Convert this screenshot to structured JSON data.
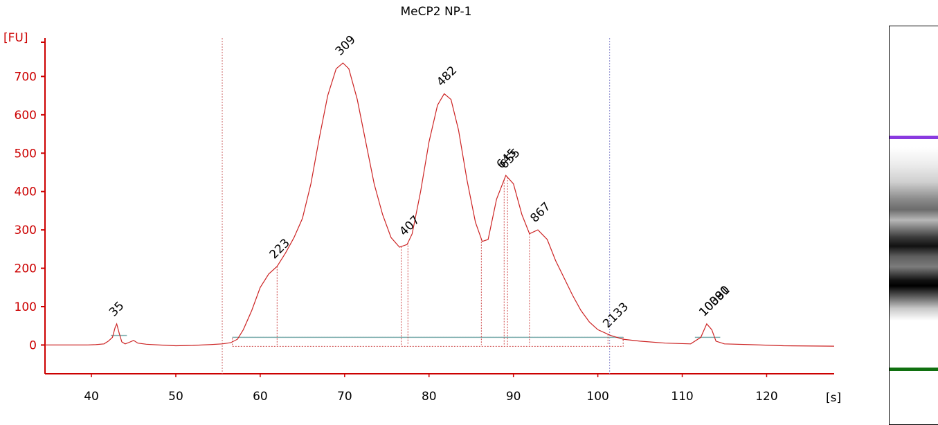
{
  "chart_data": {
    "type": "line",
    "title": "MeCP2 NP-1",
    "ylabel": "[FU]",
    "xlabel": "[s]",
    "xlim": [
      34.5,
      128
    ],
    "ylim": [
      -75,
      800
    ],
    "x_ticks": [
      40,
      50,
      60,
      70,
      80,
      90,
      100,
      110,
      120
    ],
    "y_ticks": [
      0,
      100,
      200,
      300,
      400,
      500,
      600,
      700
    ],
    "colors": {
      "trace": "#cc2222",
      "axis": "#cc0000",
      "baseline": "#7fb0b0",
      "lower_marker": "#2e8b2e",
      "upper_marker": "#8a3ae0"
    },
    "region_boundaries": [
      {
        "x": 55.5,
        "color": "#cc6666"
      },
      {
        "x": 101.4,
        "color": "#8888cc"
      }
    ],
    "peaks": [
      {
        "label": "35",
        "x": 43.0,
        "y": 55,
        "color": "#2e8b2e"
      },
      {
        "label": "223",
        "x": 62.0,
        "y": 205,
        "color": "#000000"
      },
      {
        "label": "309",
        "x": 69.8,
        "y": 735,
        "color": "#000000"
      },
      {
        "label": "407",
        "x": 77.4,
        "y": 265,
        "color": "#000000"
      },
      {
        "label": "482",
        "x": 81.8,
        "y": 655,
        "color": "#000000"
      },
      {
        "label": "645",
        "x": 88.9,
        "y": 440,
        "color": "#000000"
      },
      {
        "label": "655",
        "x": 89.3,
        "y": 440,
        "color": "#000000"
      },
      {
        "label": "867",
        "x": 92.9,
        "y": 300,
        "color": "#000000"
      },
      {
        "label": "2133",
        "x": 101.5,
        "y": 25,
        "color": "#000000"
      },
      {
        "label": "10380",
        "x": 112.9,
        "y": 55,
        "color": "#8a3ae0"
      },
      {
        "label": "10091",
        "x": 112.9,
        "y": 55,
        "color": "#000000"
      }
    ],
    "trace_points": [
      [
        34.5,
        0
      ],
      [
        39.5,
        0
      ],
      [
        40.5,
        1
      ],
      [
        41.5,
        3
      ],
      [
        42.0,
        10
      ],
      [
        42.5,
        20
      ],
      [
        42.8,
        45
      ],
      [
        43.0,
        55
      ],
      [
        43.3,
        30
      ],
      [
        43.6,
        8
      ],
      [
        44.0,
        3
      ],
      [
        44.5,
        7
      ],
      [
        45.0,
        12
      ],
      [
        45.5,
        5
      ],
      [
        46.5,
        2
      ],
      [
        48,
        0
      ],
      [
        50,
        -2
      ],
      [
        52,
        -1
      ],
      [
        54,
        1
      ],
      [
        55.5,
        3
      ],
      [
        56.5,
        6
      ],
      [
        57.3,
        15
      ],
      [
        58,
        40
      ],
      [
        59,
        90
      ],
      [
        60,
        150
      ],
      [
        61,
        185
      ],
      [
        62,
        205
      ],
      [
        63,
        240
      ],
      [
        64,
        280
      ],
      [
        65,
        330
      ],
      [
        66,
        420
      ],
      [
        67,
        540
      ],
      [
        68,
        650
      ],
      [
        69,
        720
      ],
      [
        69.8,
        735
      ],
      [
        70.5,
        720
      ],
      [
        71.5,
        640
      ],
      [
        72.5,
        530
      ],
      [
        73.5,
        420
      ],
      [
        74.5,
        340
      ],
      [
        75.5,
        280
      ],
      [
        76.5,
        255
      ],
      [
        77.4,
        262
      ],
      [
        78,
        290
      ],
      [
        79,
        400
      ],
      [
        80,
        530
      ],
      [
        81,
        625
      ],
      [
        81.8,
        655
      ],
      [
        82.6,
        640
      ],
      [
        83.5,
        560
      ],
      [
        84.5,
        430
      ],
      [
        85.5,
        320
      ],
      [
        86.3,
        270
      ],
      [
        87,
        275
      ],
      [
        88,
        380
      ],
      [
        89.1,
        442
      ],
      [
        90,
        420
      ],
      [
        91,
        340
      ],
      [
        91.9,
        290
      ],
      [
        92.9,
        300
      ],
      [
        94,
        275
      ],
      [
        95,
        220
      ],
      [
        96,
        175
      ],
      [
        97,
        130
      ],
      [
        98,
        90
      ],
      [
        99,
        60
      ],
      [
        100,
        40
      ],
      [
        101.5,
        25
      ],
      [
        103,
        15
      ],
      [
        105,
        10
      ],
      [
        108,
        5
      ],
      [
        111,
        3
      ],
      [
        112.2,
        20
      ],
      [
        112.9,
        55
      ],
      [
        113.5,
        40
      ],
      [
        114,
        10
      ],
      [
        115,
        3
      ],
      [
        118,
        1
      ],
      [
        122,
        -2
      ],
      [
        128,
        -3
      ]
    ],
    "baselines": [
      {
        "x0": 42.3,
        "x1": 44.2,
        "y": 25
      },
      {
        "x0": 56.7,
        "x1": 103.0,
        "y": 20
      },
      {
        "x0": 111.5,
        "x1": 114.5,
        "y": 20
      }
    ],
    "integration_box": {
      "x0": 56.7,
      "x1": 103.0,
      "y": 0
    },
    "drop_lines": [
      62.0,
      76.7,
      77.5,
      86.2,
      88.9,
      89.3,
      91.9,
      101.2
    ],
    "gel_lane": {
      "upper_marker_color": "#8a3ae0",
      "lower_marker_color": "#107010"
    }
  }
}
